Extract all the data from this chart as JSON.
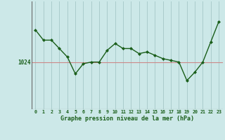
{
  "x": [
    0,
    1,
    2,
    3,
    4,
    5,
    6,
    7,
    8,
    9,
    10,
    11,
    12,
    13,
    14,
    15,
    16,
    17,
    18,
    19,
    20,
    21,
    22,
    23
  ],
  "y": [
    1033.5,
    1030.5,
    1030.5,
    1028.0,
    1025.5,
    1020.5,
    1023.5,
    1024.0,
    1024.0,
    1027.5,
    1029.5,
    1028.0,
    1028.0,
    1026.5,
    1027.0,
    1026.0,
    1025.0,
    1024.5,
    1024.0,
    1018.5,
    1021.0,
    1024.0,
    1030.0,
    1036.0
  ],
  "line_color": "#1a5e1a",
  "marker": "D",
  "marker_size": 2.0,
  "linewidth": 1.0,
  "bg_color": "#cce8e8",
  "grid_color": "#aacccc",
  "hline_color": "#cc8888",
  "hline_y": 1024,
  "ylabel": "1024",
  "xlabel_label": "Graphe pression niveau de la mer (hPa)",
  "xlim": [
    -0.5,
    23.5
  ],
  "ylim": [
    1010,
    1042
  ],
  "yticks": [
    1024
  ],
  "xticks": [
    0,
    1,
    2,
    3,
    4,
    5,
    6,
    7,
    8,
    9,
    10,
    11,
    12,
    13,
    14,
    15,
    16,
    17,
    18,
    19,
    20,
    21,
    22,
    23
  ]
}
